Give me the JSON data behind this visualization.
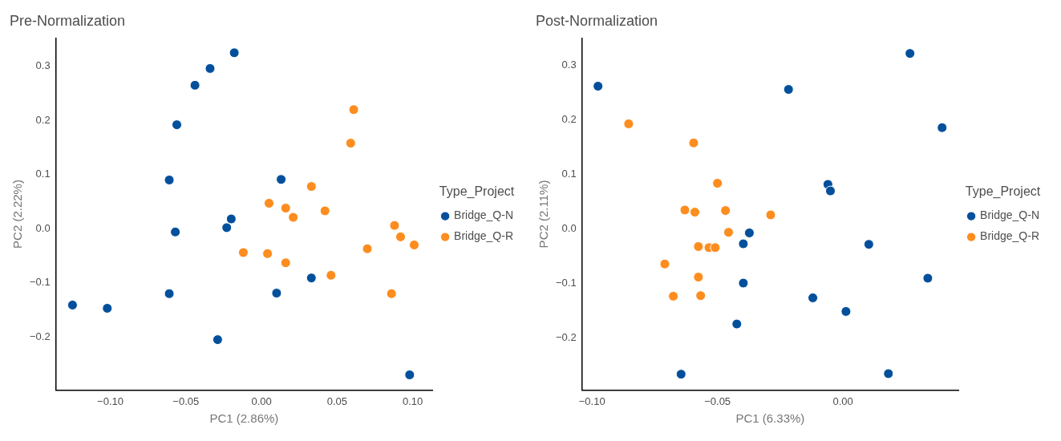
{
  "chart_data": [
    {
      "type": "scatter",
      "title": "Pre-Normalization",
      "xlabel": "PC1 (2.86%)",
      "ylabel": "PC2 (2.22%)",
      "legend_title": "Type_Project",
      "legend": "right",
      "grid": false,
      "marker": "circle",
      "xlim": [
        -0.136,
        0.113
      ],
      "ylim": [
        -0.298,
        0.352
      ],
      "xticks": [
        {
          "value": -0.1,
          "label": "−0.10"
        },
        {
          "value": -0.05,
          "label": "−0.05"
        },
        {
          "value": 0,
          "label": "0.00"
        },
        {
          "value": 0.05,
          "label": "0.05"
        },
        {
          "value": 0.1,
          "label": "0.10"
        }
      ],
      "yticks": [
        {
          "value": -0.2,
          "label": "−0.2"
        },
        {
          "value": -0.1,
          "label": "−0.1"
        },
        {
          "value": 0,
          "label": "0.0"
        },
        {
          "value": 0.1,
          "label": "0.1"
        },
        {
          "value": 0.2,
          "label": "0.2"
        },
        {
          "value": 0.3,
          "label": "0.3"
        }
      ],
      "series": [
        {
          "name": "Bridge_Q-N",
          "color": "#02509c",
          "x": [
            -0.125,
            -0.102,
            -0.061,
            -0.057,
            -0.029,
            -0.061,
            -0.056,
            -0.044,
            -0.034,
            -0.018,
            -0.023,
            -0.02,
            0.013,
            0.01,
            0.033,
            0.098
          ],
          "values": [
            -0.141,
            -0.147,
            -0.12,
            -0.006,
            -0.205,
            0.09,
            0.192,
            0.265,
            0.296,
            0.325,
            0.002,
            0.018,
            0.091,
            -0.119,
            -0.091,
            -0.27
          ]
        },
        {
          "name": "Bridge_Q-R",
          "color": "#fd8d1e",
          "x": [
            -0.012,
            0.004,
            0.016,
            0.005,
            0.016,
            0.021,
            0.033,
            0.042,
            0.046,
            0.059,
            0.061,
            0.07,
            0.088,
            0.092,
            0.101,
            0.086
          ],
          "values": [
            -0.044,
            -0.046,
            -0.063,
            0.047,
            0.038,
            0.021,
            0.078,
            0.033,
            -0.086,
            0.158,
            0.22,
            -0.037,
            0.006,
            -0.015,
            -0.03,
            -0.12
          ]
        }
      ]
    },
    {
      "type": "scatter",
      "title": "Post-Normalization",
      "xlabel": "PC1 (6.33%)",
      "ylabel": "PC2 (2.11%)",
      "legend_title": "Type_Project",
      "legend": "right",
      "grid": false,
      "marker": "circle",
      "xlim": [
        -0.104,
        0.046
      ],
      "ylim": [
        -0.295,
        0.35
      ],
      "xticks": [
        {
          "value": -0.1,
          "label": "−0.10"
        },
        {
          "value": -0.05,
          "label": "−0.05"
        },
        {
          "value": 0,
          "label": "0.00"
        }
      ],
      "yticks": [
        {
          "value": -0.2,
          "label": "−0.2"
        },
        {
          "value": -0.1,
          "label": "−0.1"
        },
        {
          "value": 0,
          "label": "0.0"
        },
        {
          "value": 0.1,
          "label": "0.1"
        },
        {
          "value": 0.2,
          "label": "0.2"
        },
        {
          "value": 0.3,
          "label": "0.3"
        }
      ],
      "series": [
        {
          "name": "Bridge_Q-N",
          "color": "#02509c",
          "x": [
            -0.0976,
            -0.0217,
            0.0267,
            0.0395,
            -0.006,
            -0.005,
            -0.0373,
            -0.0397,
            0.0103,
            -0.0397,
            0.0338,
            -0.012,
            0.0012,
            -0.0423,
            -0.0645,
            0.0181
          ],
          "values": [
            0.262,
            0.256,
            0.322,
            0.186,
            0.082,
            0.07,
            -0.007,
            -0.027,
            -0.028,
            -0.099,
            -0.09,
            -0.126,
            -0.151,
            -0.174,
            -0.266,
            -0.265
          ]
        },
        {
          "name": "Bridge_Q-R",
          "color": "#fd8d1e",
          "x": [
            -0.0854,
            -0.0595,
            -0.05,
            -0.063,
            -0.059,
            -0.0468,
            -0.0288,
            -0.0456,
            -0.0576,
            -0.0534,
            -0.0509,
            -0.071,
            -0.0576,
            -0.0676,
            -0.0567
          ],
          "values": [
            0.193,
            0.158,
            0.084,
            0.035,
            0.031,
            0.034,
            0.026,
            -0.006,
            -0.032,
            -0.034,
            -0.034,
            -0.064,
            -0.088,
            -0.123,
            -0.122
          ]
        }
      ]
    }
  ]
}
